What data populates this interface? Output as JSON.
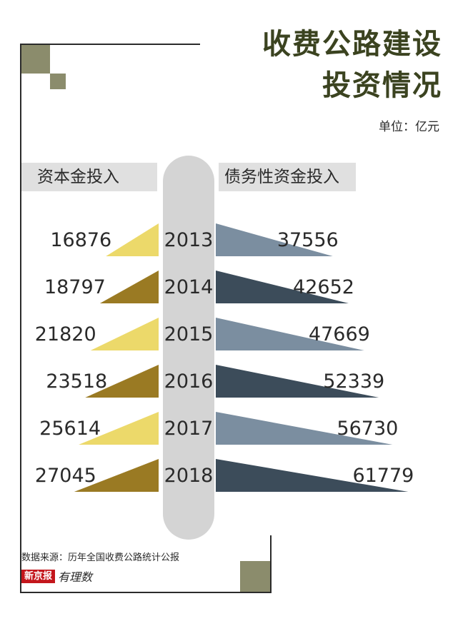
{
  "title": {
    "line1": "收费公路建设",
    "line2": "投资情况"
  },
  "unit": "单位：亿元",
  "left_header": "资本金投入",
  "right_header": "债务性资金投入",
  "source": "数据来源：历年全国收费公路统计公报",
  "brand": {
    "badge": "新京报",
    "script": "有理数"
  },
  "colors": {
    "title": "#3b4320",
    "frame_square": "#8b8c6c",
    "left_light": "#ecd96a",
    "left_dark": "#9a7a23",
    "right_light": "#7b8ea0",
    "right_dark": "#3c4c5a",
    "pill": "#d4d4d4",
    "header_bg": "#e0e0e0"
  },
  "chart_data": {
    "type": "bar",
    "title": "收费公路建设投资情况",
    "unit": "亿元",
    "categories": [
      "2013",
      "2014",
      "2015",
      "2016",
      "2017",
      "2018"
    ],
    "series": [
      {
        "name": "资本金投入",
        "values": [
          16876,
          18797,
          21820,
          23518,
          25614,
          27045
        ]
      },
      {
        "name": "债务性资金投入",
        "values": [
          37556,
          42652,
          47669,
          52339,
          56730,
          61779
        ]
      }
    ]
  }
}
